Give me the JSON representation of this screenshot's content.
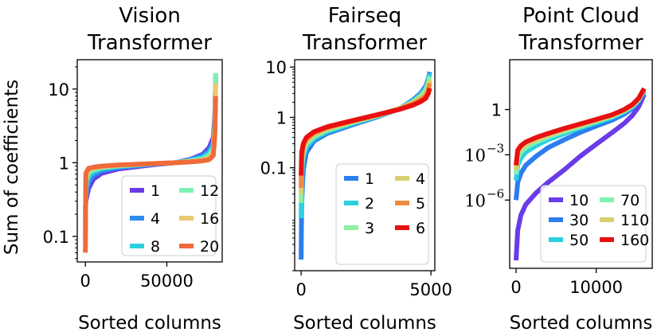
{
  "figure": {
    "ylabel": "Sum of coefficients"
  },
  "chart_data": [
    {
      "type": "line",
      "title_lines": [
        "Vision",
        "Transformer"
      ],
      "xlabel": "Sorted columns",
      "ylabel": "Sum of coefficients",
      "yscale": "log",
      "xlim": [
        -5000,
        84000
      ],
      "ylim": [
        0.045,
        25
      ],
      "xticks": [
        {
          "v": 0,
          "label": "0"
        },
        {
          "v": 50000,
          "label": "50000"
        }
      ],
      "yticks": [
        {
          "v": 10,
          "label": "10"
        },
        {
          "v": 1,
          "label": "1"
        },
        {
          "v": 0.1,
          "label": "0.1"
        }
      ],
      "legend_position": "lower right",
      "legend_cols": 2,
      "series": [
        {
          "name": "1",
          "color": "#6a3be8",
          "x": [
            0,
            300,
            2000,
            5000,
            10000,
            20000,
            40000,
            55000,
            65000,
            72000,
            76000,
            78500,
            79500,
            80000
          ],
          "y": [
            0.24,
            0.3,
            0.45,
            0.6,
            0.72,
            0.82,
            0.93,
            1.0,
            1.12,
            1.3,
            1.6,
            2.2,
            4.5,
            14
          ]
        },
        {
          "name": "4",
          "color": "#2c8cf0",
          "x": [
            0,
            300,
            2000,
            5000,
            10000,
            20000,
            40000,
            55000,
            65000,
            72000,
            76000,
            78500,
            79500,
            80000
          ],
          "y": [
            0.2,
            0.35,
            0.55,
            0.68,
            0.78,
            0.86,
            0.95,
            1.0,
            1.1,
            1.25,
            1.45,
            1.9,
            4.0,
            15
          ]
        },
        {
          "name": "8",
          "color": "#2ad0e0",
          "x": [
            0,
            300,
            2000,
            5000,
            10000,
            20000,
            40000,
            55000,
            65000,
            72000,
            76000,
            78500,
            79500,
            80000
          ],
          "y": [
            0.17,
            0.45,
            0.65,
            0.75,
            0.83,
            0.89,
            0.96,
            1.0,
            1.08,
            1.18,
            1.35,
            1.7,
            3.5,
            16
          ]
        },
        {
          "name": "12",
          "color": "#7ef2b2",
          "x": [
            0,
            300,
            2000,
            5000,
            10000,
            20000,
            40000,
            55000,
            65000,
            72000,
            76000,
            78500,
            79500,
            80000
          ],
          "y": [
            0.12,
            0.55,
            0.74,
            0.8,
            0.86,
            0.91,
            0.97,
            1.0,
            1.06,
            1.12,
            1.25,
            1.55,
            3.2,
            16.5
          ]
        },
        {
          "name": "16",
          "color": "#e8c870",
          "x": [
            0,
            300,
            2000,
            5000,
            10000,
            20000,
            40000,
            55000,
            65000,
            72000,
            76000,
            78500,
            79500,
            80000
          ],
          "y": [
            0.09,
            0.62,
            0.8,
            0.84,
            0.88,
            0.92,
            0.97,
            1.0,
            1.04,
            1.08,
            1.16,
            1.4,
            2.8,
            12
          ]
        },
        {
          "name": "20",
          "color": "#f06a3a",
          "x": [
            0,
            300,
            2000,
            5000,
            10000,
            20000,
            40000,
            55000,
            65000,
            72000,
            76000,
            78500,
            79500,
            80000
          ],
          "y": [
            0.06,
            0.72,
            0.84,
            0.87,
            0.9,
            0.93,
            0.97,
            1.0,
            1.03,
            1.06,
            1.1,
            1.25,
            2.4,
            8
          ]
        }
      ]
    },
    {
      "type": "line",
      "title_lines": [
        "Fairseq",
        "Transformer"
      ],
      "xlabel": "Sorted columns",
      "yscale": "log",
      "xlim": [
        -250,
        5150
      ],
      "ylim": [
        0.0009,
        14
      ],
      "xticks": [
        {
          "v": 0,
          "label": "0"
        },
        {
          "v": 5000,
          "label": "5000"
        }
      ],
      "yticks": [
        {
          "v": 10,
          "label": "10"
        },
        {
          "v": 1,
          "label": "1"
        },
        {
          "v": 0.1,
          "label": "0.1"
        }
      ],
      "legend_position": "lower right",
      "legend_cols": 2,
      "series": [
        {
          "name": "1",
          "color": "#2c7ef0",
          "x": [
            0,
            20,
            80,
            200,
            500,
            1000,
            2000,
            3000,
            3800,
            4300,
            4600,
            4800,
            4900,
            4950
          ],
          "y": [
            0.0015,
            0.02,
            0.09,
            0.2,
            0.34,
            0.48,
            0.72,
            1.05,
            1.5,
            2.2,
            3.0,
            4.2,
            6.0,
            8.0
          ]
        },
        {
          "name": "2",
          "color": "#2ad0e0",
          "x": [
            0,
            20,
            80,
            200,
            500,
            1000,
            2000,
            3000,
            3800,
            4300,
            4600,
            4800,
            4900,
            4950
          ],
          "y": [
            0.01,
            0.07,
            0.16,
            0.26,
            0.38,
            0.52,
            0.76,
            1.08,
            1.5,
            2.1,
            2.8,
            3.8,
            5.5,
            7.5
          ]
        },
        {
          "name": "3",
          "color": "#8ef0a0",
          "x": [
            0,
            20,
            80,
            200,
            500,
            1000,
            2000,
            3000,
            3800,
            4300,
            4600,
            4800,
            4900,
            4950
          ],
          "y": [
            0.02,
            0.1,
            0.2,
            0.3,
            0.42,
            0.56,
            0.8,
            1.1,
            1.5,
            2.0,
            2.6,
            3.4,
            4.8,
            6.5
          ]
        },
        {
          "name": "4",
          "color": "#d8d070",
          "x": [
            0,
            20,
            80,
            200,
            500,
            1000,
            2000,
            3000,
            3800,
            4300,
            4600,
            4800,
            4900,
            4950
          ],
          "y": [
            0.03,
            0.14,
            0.24,
            0.34,
            0.46,
            0.6,
            0.83,
            1.12,
            1.5,
            1.95,
            2.4,
            3.0,
            4.0,
            5.5
          ]
        },
        {
          "name": "5",
          "color": "#f08a40",
          "x": [
            0,
            20,
            80,
            200,
            500,
            1000,
            2000,
            3000,
            3800,
            4300,
            4600,
            4800,
            4900,
            4950
          ],
          "y": [
            0.04,
            0.16,
            0.27,
            0.37,
            0.49,
            0.62,
            0.85,
            1.14,
            1.48,
            1.85,
            2.25,
            2.7,
            3.5,
            4.8
          ]
        },
        {
          "name": "6",
          "color": "#e81010",
          "x": [
            0,
            20,
            80,
            200,
            500,
            1000,
            2000,
            3000,
            3800,
            4300,
            4600,
            4800,
            4900,
            4950
          ],
          "y": [
            0.07,
            0.2,
            0.3,
            0.4,
            0.52,
            0.65,
            0.87,
            1.15,
            1.45,
            1.75,
            2.05,
            2.4,
            3.0,
            3.8
          ]
        }
      ]
    },
    {
      "type": "line",
      "title_lines": [
        "Point Cloud",
        "Transformer"
      ],
      "xlabel": "Sorted columns",
      "yscale": "log",
      "xlim": [
        -800,
        17000
      ],
      "ylim": [
        3e-11,
        2000
      ],
      "xticks": [
        {
          "v": 0,
          "label": "0"
        },
        {
          "v": 10000,
          "label": "10000"
        }
      ],
      "yticks": [
        {
          "v": 1,
          "label": "1"
        },
        {
          "v": 0.001,
          "label": "10",
          "sup": "−3"
        },
        {
          "v": 1e-06,
          "label": "10",
          "sup": "−6"
        }
      ],
      "legend_position": "lower right",
      "legend_cols": 2,
      "series": [
        {
          "name": "10",
          "color": "#6a3be8",
          "x": [
            0,
            200,
            600,
            1200,
            2500,
            4000,
            6000,
            8000,
            10000,
            12000,
            13500,
            14500,
            15300,
            16000
          ],
          "y": [
            1e-10,
            1e-08,
            1e-07,
            5e-07,
            3e-06,
            1.5e-05,
            0.0001,
            0.0008,
            0.005,
            0.03,
            0.12,
            0.4,
            1.5,
            10
          ]
        },
        {
          "name": "30",
          "color": "#2c7ef0",
          "x": [
            0,
            200,
            600,
            1200,
            2500,
            4000,
            6000,
            8000,
            10000,
            12000,
            13500,
            14500,
            15300,
            16000
          ],
          "y": [
            1e-06,
            1.5e-05,
            6e-05,
            0.0002,
            0.0008,
            0.003,
            0.01,
            0.03,
            0.08,
            0.2,
            0.5,
            1.2,
            3.5,
            15
          ]
        },
        {
          "name": "50",
          "color": "#2ad0e0",
          "x": [
            0,
            200,
            600,
            1200,
            2500,
            4000,
            6000,
            8000,
            10000,
            12000,
            13500,
            14500,
            15300,
            16000
          ],
          "y": [
            2e-05,
            0.0002,
            0.0006,
            0.0015,
            0.004,
            0.01,
            0.025,
            0.06,
            0.13,
            0.3,
            0.7,
            1.5,
            4,
            18
          ]
        },
        {
          "name": "70",
          "color": "#7ef2b2",
          "x": [
            0,
            200,
            600,
            1200,
            2500,
            4000,
            6000,
            8000,
            10000,
            12000,
            13500,
            14500,
            15300,
            16000
          ],
          "y": [
            5e-05,
            0.0006,
            0.0015,
            0.003,
            0.007,
            0.015,
            0.035,
            0.075,
            0.16,
            0.35,
            0.8,
            1.7,
            4.5,
            20
          ]
        },
        {
          "name": "110",
          "color": "#d8d070",
          "x": [
            0,
            200,
            600,
            1200,
            2500,
            4000,
            6000,
            8000,
            10000,
            12000,
            13500,
            14500,
            15300,
            16000
          ],
          "y": [
            0.0001,
            0.0012,
            0.0025,
            0.005,
            0.01,
            0.02,
            0.045,
            0.09,
            0.19,
            0.4,
            0.9,
            1.9,
            5,
            22
          ]
        },
        {
          "name": "160",
          "color": "#e81010",
          "x": [
            0,
            200,
            600,
            1200,
            2500,
            4000,
            6000,
            8000,
            10000,
            12000,
            13500,
            14500,
            15300,
            16000
          ],
          "y": [
            0.0002,
            0.002,
            0.004,
            0.007,
            0.014,
            0.026,
            0.055,
            0.11,
            0.22,
            0.45,
            1.0,
            2.1,
            5.5,
            25
          ]
        }
      ]
    }
  ]
}
